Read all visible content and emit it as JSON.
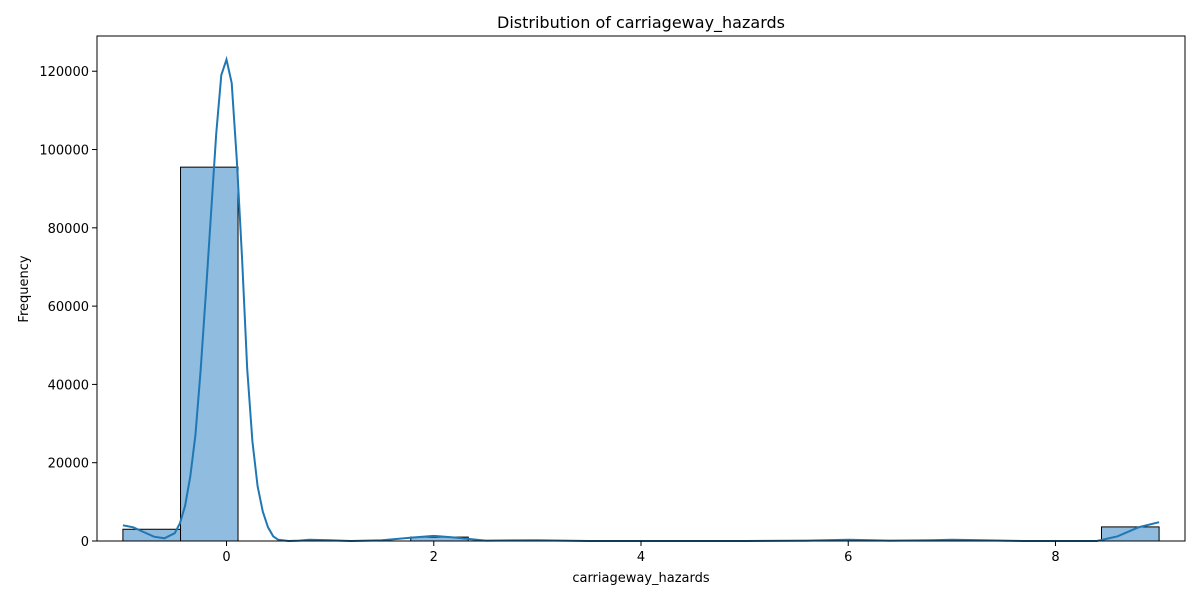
{
  "chart_data": {
    "type": "bar",
    "title": "Distribution of carriageway_hazards",
    "xlabel": "carriageway_hazards",
    "ylabel": "Frequency",
    "xlim": [
      -1.25,
      9.25
    ],
    "ylim": [
      0,
      129000
    ],
    "xticks": [
      0,
      2,
      4,
      6,
      8
    ],
    "yticks": [
      0,
      20000,
      40000,
      60000,
      80000,
      100000,
      120000
    ],
    "grid": false,
    "bins": [
      {
        "x0": -1.0,
        "x1": -0.444,
        "value": 3000
      },
      {
        "x0": -0.444,
        "x1": 0.111,
        "value": 95500
      },
      {
        "x0": 0.111,
        "x1": 0.667,
        "value": 0
      },
      {
        "x0": 0.667,
        "x1": 1.222,
        "value": 100
      },
      {
        "x0": 1.222,
        "x1": 1.778,
        "value": 0
      },
      {
        "x0": 1.778,
        "x1": 2.333,
        "value": 1000
      },
      {
        "x0": 2.333,
        "x1": 2.889,
        "value": 0
      },
      {
        "x0": 2.889,
        "x1": 3.444,
        "value": 100
      },
      {
        "x0": 3.444,
        "x1": 4.0,
        "value": 0
      },
      {
        "x0": 4.0,
        "x1": 4.556,
        "value": 0
      },
      {
        "x0": 4.556,
        "x1": 5.111,
        "value": 0
      },
      {
        "x0": 5.111,
        "x1": 5.667,
        "value": 0
      },
      {
        "x0": 5.667,
        "x1": 6.222,
        "value": 200
      },
      {
        "x0": 6.222,
        "x1": 6.778,
        "value": 0
      },
      {
        "x0": 6.778,
        "x1": 7.333,
        "value": 200
      },
      {
        "x0": 7.333,
        "x1": 7.889,
        "value": 0
      },
      {
        "x0": 7.889,
        "x1": 8.444,
        "value": 0
      },
      {
        "x0": 8.444,
        "x1": 9.0,
        "value": 3600
      }
    ],
    "kde": {
      "x": [
        -1.0,
        -0.9,
        -0.8,
        -0.7,
        -0.6,
        -0.5,
        -0.45,
        -0.4,
        -0.35,
        -0.3,
        -0.25,
        -0.2,
        -0.15,
        -0.1,
        -0.05,
        0.0,
        0.05,
        0.1,
        0.15,
        0.2,
        0.25,
        0.3,
        0.35,
        0.4,
        0.45,
        0.5,
        0.6,
        0.7,
        0.8,
        1.0,
        1.2,
        1.5,
        1.8,
        2.0,
        2.2,
        2.5,
        3.0,
        3.5,
        4.0,
        5.0,
        5.6,
        6.0,
        6.4,
        6.8,
        7.0,
        7.3,
        7.7,
        8.0,
        8.4,
        8.6,
        8.8,
        9.0
      ],
      "y": [
        4000,
        3500,
        2300,
        1100,
        700,
        2000,
        4500,
        9000,
        16500,
        27000,
        43500,
        63000,
        83500,
        104000,
        119000,
        123000,
        117000,
        97000,
        72000,
        44000,
        25500,
        14000,
        7500,
        3500,
        1200,
        300,
        0,
        100,
        300,
        200,
        0,
        200,
        900,
        1300,
        900,
        100,
        200,
        0,
        0,
        0,
        100,
        300,
        100,
        200,
        300,
        200,
        0,
        0,
        0,
        1200,
        3500,
        4800
      ]
    },
    "colors": {
      "bar_fill": "#8fbcdf",
      "bar_edge": "#000000",
      "kde_line": "#1f77b4"
    }
  }
}
